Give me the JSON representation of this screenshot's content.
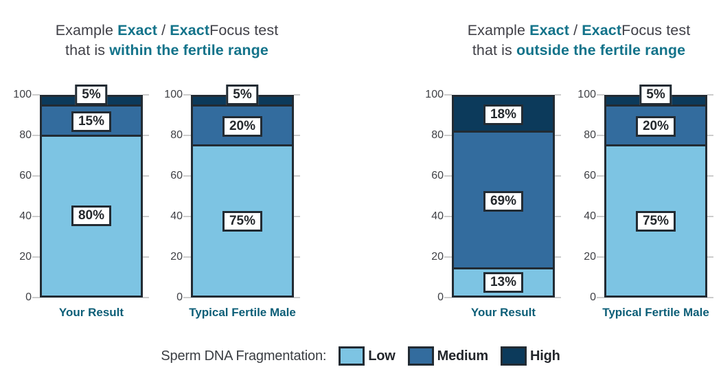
{
  "colors": {
    "low": "#7DC4E3",
    "medium": "#336C9E",
    "high": "#0C3A5B",
    "outline": "#222B33",
    "accent_teal": "#13738A",
    "category_teal": "#0C5E77",
    "title_text": "#404047",
    "tick_gray": "#CCCCCC"
  },
  "titles": {
    "left": {
      "line1": [
        {
          "t": "Example ",
          "accent": false
        },
        {
          "t": "Exact",
          "accent": true
        },
        {
          "t": " / ",
          "accent": false
        },
        {
          "t": "Exact",
          "accent": true
        },
        {
          "t": "Focus test",
          "accent": false
        }
      ],
      "line2": [
        {
          "t": "that is ",
          "accent": false
        },
        {
          "t": "within the fertile range",
          "accent": true
        }
      ]
    },
    "right": {
      "line1": [
        {
          "t": "Example ",
          "accent": false
        },
        {
          "t": "Exact",
          "accent": true
        },
        {
          "t": " / ",
          "accent": false
        },
        {
          "t": "Exact",
          "accent": true
        },
        {
          "t": "Focus test",
          "accent": false
        }
      ],
      "line2": [
        {
          "t": "that is ",
          "accent": false
        },
        {
          "t": "outside the fertile range",
          "accent": true
        }
      ]
    }
  },
  "chart_data": [
    {
      "type": "bar",
      "stacked": true,
      "title": "Example Exact / ExactFocus test that is within the fertile range",
      "categories": [
        "Your Result",
        "Typical Fertile Male"
      ],
      "series": [
        {
          "name": "Low",
          "values": [
            80,
            75
          ]
        },
        {
          "name": "Medium",
          "values": [
            15,
            20
          ]
        },
        {
          "name": "High",
          "values": [
            5,
            5
          ]
        }
      ],
      "ylim": [
        0,
        100
      ],
      "yticks": [
        100,
        80,
        60,
        40,
        20,
        0
      ],
      "grid": false,
      "value_label_format": "{v}%"
    },
    {
      "type": "bar",
      "stacked": true,
      "title": "Example Exact / ExactFocus test that is outside the fertile range",
      "categories": [
        "Your Result",
        "Typical Fertile Male"
      ],
      "series": [
        {
          "name": "Low",
          "values": [
            13,
            75
          ]
        },
        {
          "name": "Medium",
          "values": [
            69,
            20
          ]
        },
        {
          "name": "High",
          "values": [
            18,
            5
          ]
        }
      ],
      "ylim": [
        0,
        100
      ],
      "yticks": [
        100,
        80,
        60,
        40,
        20,
        0
      ],
      "grid": false,
      "value_label_format": "{v}%"
    }
  ],
  "legend": {
    "label": "Sperm DNA Fragmentation:",
    "position": "bottom-center",
    "items": [
      {
        "name": "Low",
        "color_key": "low"
      },
      {
        "name": "Medium",
        "color_key": "medium"
      },
      {
        "name": "High",
        "color_key": "high"
      }
    ]
  }
}
